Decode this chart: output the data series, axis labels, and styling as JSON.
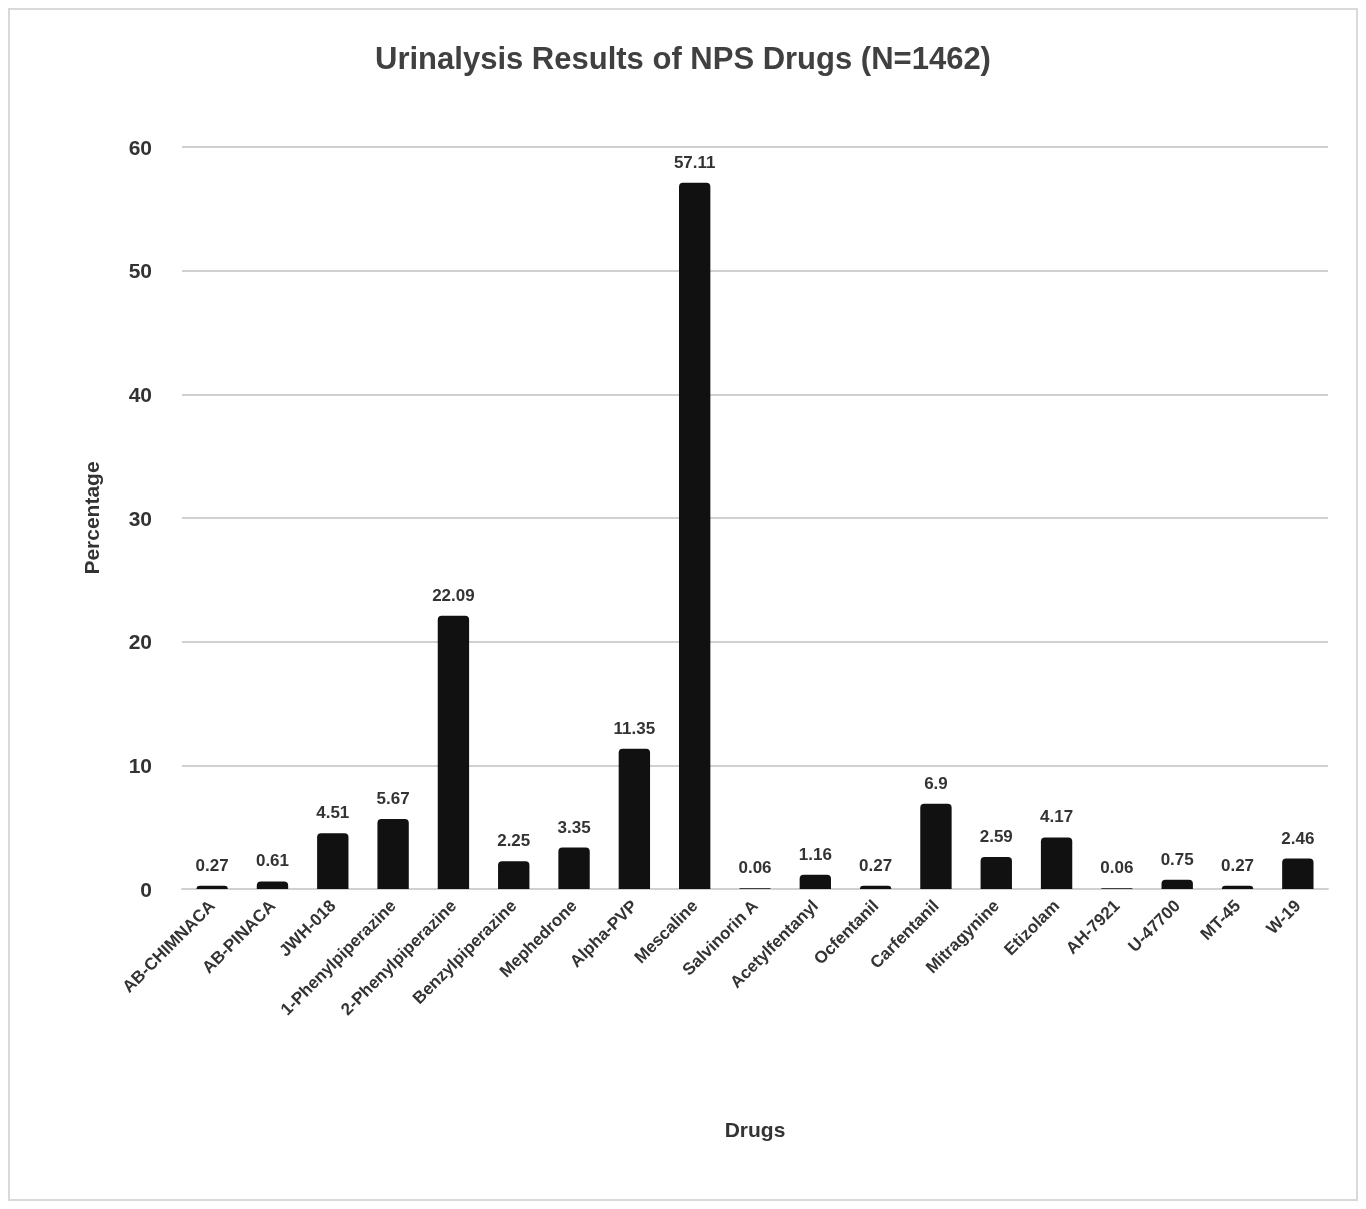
{
  "chart_data": {
    "type": "bar",
    "title": "Urinalysis Results of NPS Drugs (N=1462)",
    "xlabel": "Drugs",
    "ylabel": "Percentage",
    "categories": [
      "AB-CHIMNACA",
      "AB-PINACA",
      "JWH-018",
      "1-Phenylpiperazine",
      "2-Phenylpiperazine",
      "Benzylpiperazine",
      "Mephedrone",
      "Alpha-PVP",
      "Mescaline",
      "Salvinorin A",
      "Acetylfentanyl",
      "Ocfentanil",
      "Carfentanil",
      "Mitragynine",
      "Etizolam",
      "AH-7921",
      "U-47700",
      "MT-45",
      "W-19"
    ],
    "values": [
      0.27,
      0.61,
      4.51,
      5.67,
      22.09,
      2.25,
      3.35,
      11.35,
      57.11,
      0.06,
      1.16,
      0.27,
      6.9,
      2.59,
      4.17,
      0.06,
      0.75,
      0.27,
      2.46
    ],
    "color": "#111111",
    "ylim": [
      0,
      60
    ],
    "yticks": [
      0,
      10,
      20,
      30,
      40,
      50,
      60
    ],
    "grid": "y",
    "data_labels": true
  }
}
